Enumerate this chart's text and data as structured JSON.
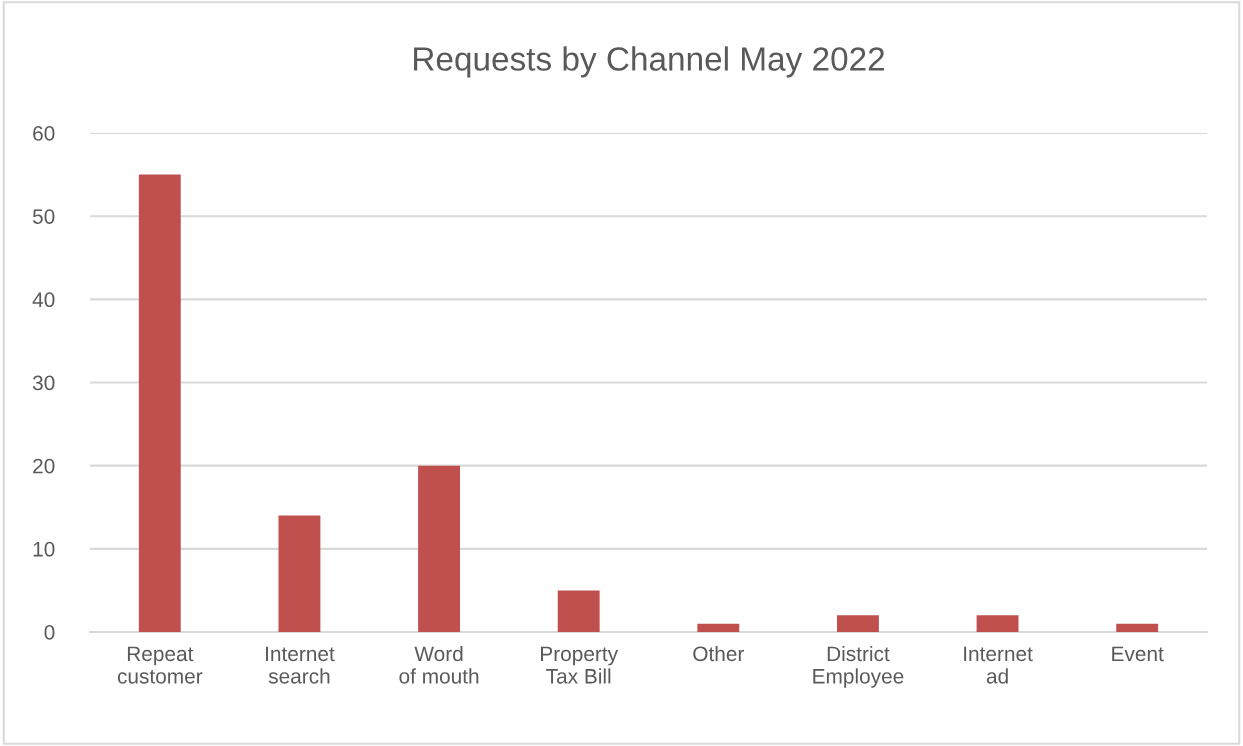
{
  "chart_data": {
    "type": "bar",
    "title": "Requests by Channel May 2022",
    "categories": [
      "Repeat customer",
      "Internet search",
      "Word of mouth",
      "Property Tax Bill",
      "Other",
      "District Employee",
      "Internet ad",
      "Event"
    ],
    "values": [
      55,
      14,
      20,
      5,
      1,
      2,
      2,
      1
    ],
    "color": "#c0504d",
    "ylim": [
      0,
      60
    ],
    "yticks": [
      0,
      10,
      20,
      30,
      40,
      50,
      60
    ],
    "grid": "y"
  }
}
